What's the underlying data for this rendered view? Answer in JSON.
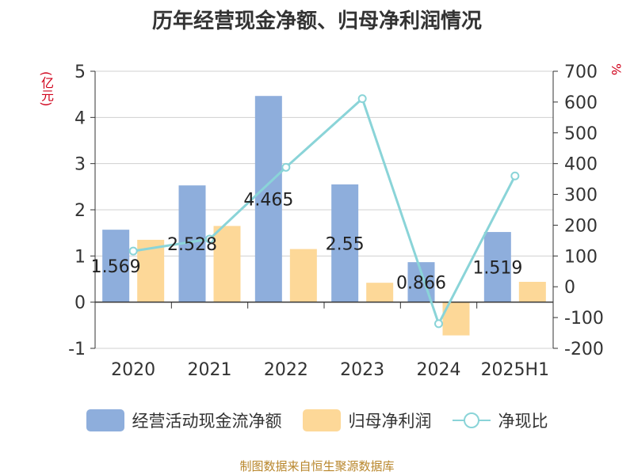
{
  "chart_data": {
    "type": "bar",
    "title": "历年经营现金净额、归母净利润情况",
    "categories": [
      "2020",
      "2021",
      "2022",
      "2023",
      "2024",
      "2025H1"
    ],
    "series": [
      {
        "name": "经营活动现金流净额",
        "kind": "bar",
        "axis": "left",
        "color": "#8eaedc",
        "values": [
          1.569,
          2.528,
          4.465,
          2.55,
          0.866,
          1.519
        ],
        "labels": [
          "1.569",
          "2.528",
          "4.465",
          "2.55",
          "0.866",
          "1.519"
        ]
      },
      {
        "name": "归母净利润",
        "kind": "bar",
        "axis": "left",
        "color": "#fdd898",
        "values": [
          1.35,
          1.65,
          1.15,
          0.42,
          -0.72,
          0.44
        ]
      },
      {
        "name": "净现比",
        "kind": "line",
        "axis": "right",
        "color": "#8ad4d8",
        "values": [
          116,
          155,
          388,
          611,
          -120,
          360
        ]
      }
    ],
    "y_left": {
      "unit": "(亿元)",
      "ylim": [
        -1,
        5
      ],
      "ticks": [
        "-1",
        "0",
        "1",
        "2",
        "3",
        "4",
        "5"
      ]
    },
    "y_right": {
      "unit": "%",
      "ylim": [
        -200,
        700
      ],
      "ticks": [
        "-200",
        "-100",
        "0",
        "100",
        "200",
        "300",
        "400",
        "500",
        "600",
        "700"
      ]
    },
    "grid": true,
    "legend_position": "bottom"
  },
  "footer": "制图数据来自恒生聚源数据库"
}
